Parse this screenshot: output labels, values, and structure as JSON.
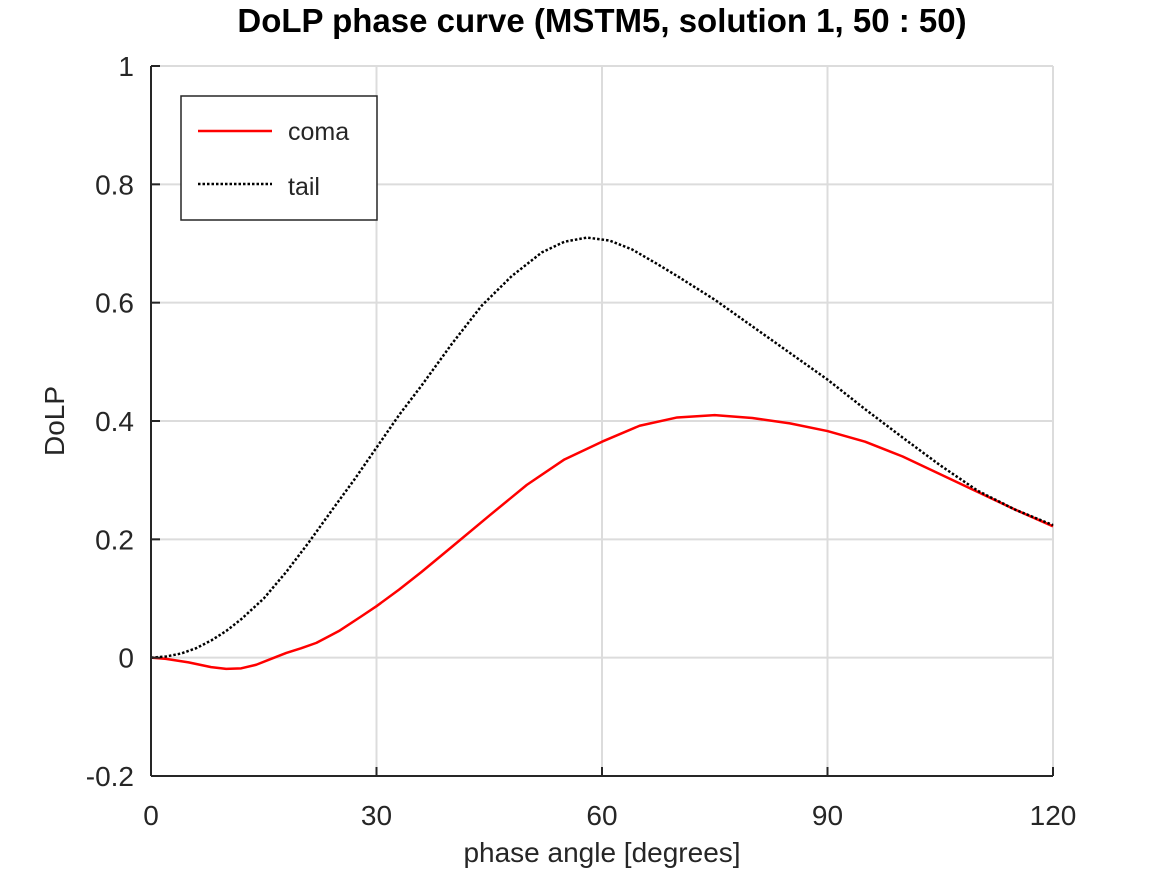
{
  "chart_data": {
    "type": "line",
    "title": "DoLP phase curve (MSTM5, solution 1, 50 : 50)",
    "xlabel": "phase angle [degrees]",
    "ylabel": "DoLP",
    "xlim": [
      0,
      120
    ],
    "ylim": [
      -0.2,
      1
    ],
    "xticks": [
      0,
      30,
      60,
      90,
      120
    ],
    "xtick_labels": [
      "0",
      "30",
      "60",
      "90",
      "120"
    ],
    "yticks": [
      -0.2,
      0,
      0.2,
      0.4,
      0.6,
      0.8,
      1
    ],
    "ytick_labels": [
      "-0.2",
      "0",
      "0.2",
      "0.4",
      "0.6",
      "0.8",
      "1"
    ],
    "grid": true,
    "legend_position": "top-left",
    "series": [
      {
        "name": "coma",
        "color": "#ff0000",
        "style": "solid",
        "x": [
          0,
          2,
          5,
          8,
          10,
          12,
          14,
          16,
          18,
          20,
          22,
          25,
          28,
          30,
          33,
          36,
          40,
          45,
          50,
          55,
          60,
          65,
          70,
          75,
          80,
          85,
          90,
          95,
          100,
          105,
          110,
          115,
          120
        ],
        "y": [
          0,
          -0.002,
          -0.008,
          -0.016,
          -0.019,
          -0.018,
          -0.012,
          -0.002,
          0.008,
          0.016,
          0.025,
          0.045,
          0.07,
          0.087,
          0.115,
          0.145,
          0.187,
          0.24,
          0.292,
          0.335,
          0.365,
          0.392,
          0.406,
          0.41,
          0.405,
          0.396,
          0.383,
          0.365,
          0.34,
          0.31,
          0.28,
          0.25,
          0.222
        ]
      },
      {
        "name": "tail",
        "color": "#000000",
        "style": "dotted",
        "x": [
          0,
          2,
          4,
          6,
          8,
          10,
          12,
          15,
          18,
          21,
          24,
          27,
          30,
          33,
          36,
          40,
          44,
          48,
          52,
          55,
          58,
          61,
          64,
          67,
          70,
          75,
          80,
          85,
          90,
          95,
          100,
          105,
          110,
          115,
          120
        ],
        "y": [
          0,
          0.002,
          0.007,
          0.016,
          0.029,
          0.045,
          0.065,
          0.1,
          0.145,
          0.195,
          0.248,
          0.3,
          0.355,
          0.41,
          0.46,
          0.53,
          0.595,
          0.645,
          0.685,
          0.703,
          0.71,
          0.705,
          0.69,
          0.668,
          0.645,
          0.605,
          0.56,
          0.515,
          0.47,
          0.42,
          0.372,
          0.325,
          0.282,
          0.25,
          0.224
        ]
      }
    ]
  }
}
